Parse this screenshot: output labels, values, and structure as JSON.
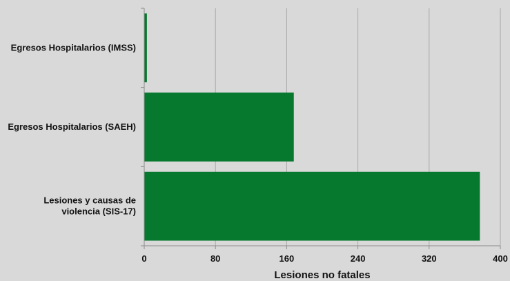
{
  "chart_data": {
    "type": "bar",
    "orientation": "horizontal",
    "categories": [
      "Egresos Hospitalarios (IMSS)",
      "Egresos Hospitalarios (SAEH)",
      "Lesiones y causas de violencia (SIS-17)"
    ],
    "category_label_lines": [
      [
        "Egresos Hospitalarios (IMSS)"
      ],
      [
        "Egresos Hospitalarios (SAEH)"
      ],
      [
        "Lesiones y causas de",
        "violencia (SIS-17)"
      ]
    ],
    "values": [
      3,
      168,
      377
    ],
    "xlabel": "Lesiones no fatales",
    "ylabel": "",
    "xlim": [
      0,
      400
    ],
    "xticks": [
      0,
      80,
      160,
      240,
      320,
      400
    ],
    "grid": true,
    "legend": "none",
    "colors": {
      "bar": "#06792f",
      "background": "#d9d9d9",
      "gridline": "#a8a8a8",
      "axis": "#8a8a8a"
    }
  }
}
